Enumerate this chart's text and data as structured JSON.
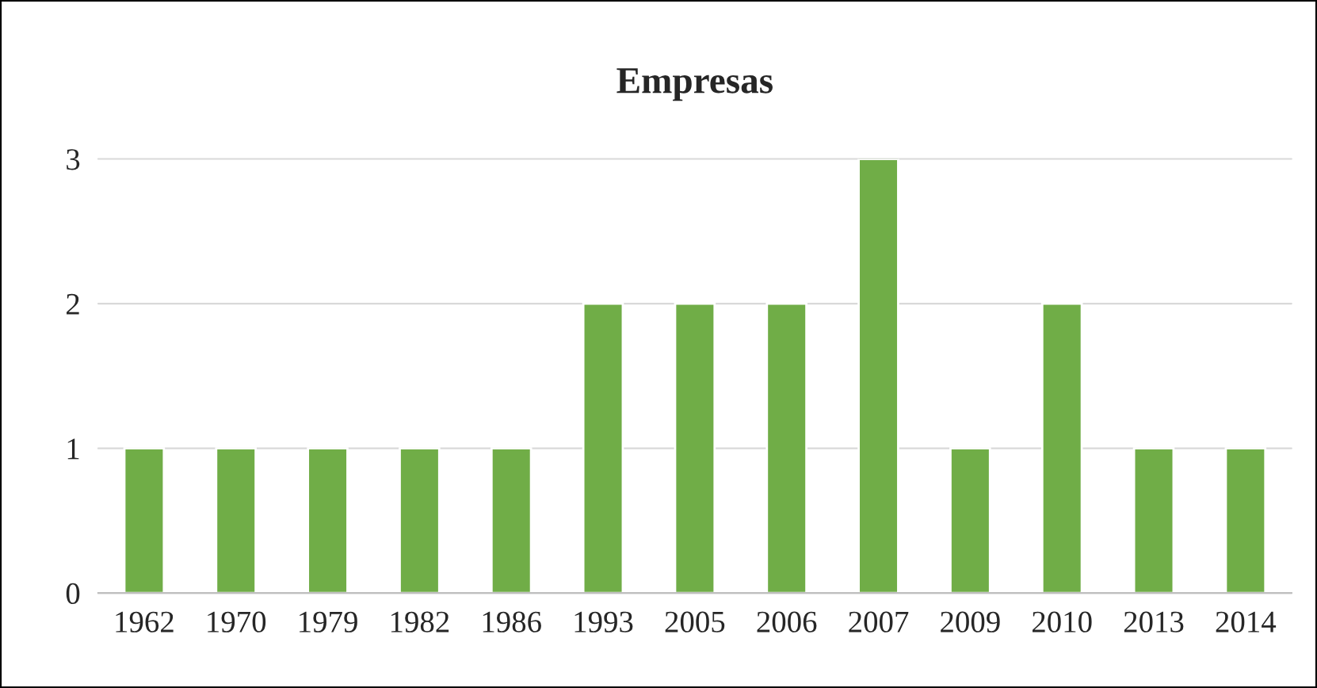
{
  "chart_data": {
    "type": "bar",
    "title": "Empresas",
    "categories": [
      "1962",
      "1970",
      "1979",
      "1982",
      "1986",
      "1993",
      "2005",
      "2006",
      "2007",
      "2009",
      "2010",
      "2013",
      "2014"
    ],
    "values": [
      1,
      1,
      1,
      1,
      1,
      2,
      2,
      2,
      3,
      1,
      2,
      1,
      1
    ],
    "color": "#70ad47",
    "ylim": [
      0,
      3
    ],
    "yticks": [
      0,
      1,
      2,
      3
    ],
    "grid": "y",
    "legend": false
  }
}
